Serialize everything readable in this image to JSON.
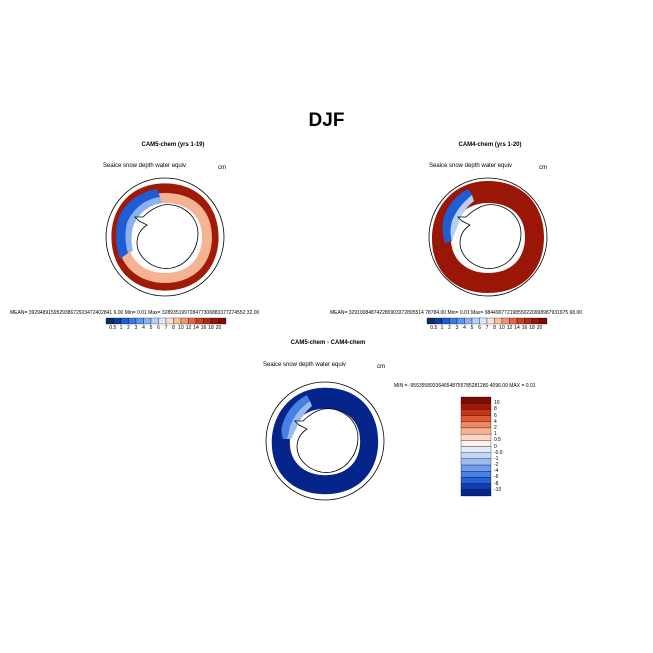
{
  "figure": {
    "title": "DJF"
  },
  "panels": [
    {
      "title": "CAM5-chem (yrs 1-19)",
      "variable": "Seaice snow depth water equiv",
      "units": "cm",
      "stats_text": "MEAN= 392948915952938672923472402841 6.00   Min=     0.01   Max=  328935199728477306883377274552 32.00"
    },
    {
      "title": "CAM4-chem (yrs 1-20)",
      "variable": "Seaice snow depth water equiv",
      "units": "cm",
      "stats_text": "MEAN= 329100848742280903372895514 78784.00   Min=     0.01   Max=  984490772198550220998987931975 68.00"
    },
    {
      "title": "CAM5-chem - CAM4-chem",
      "variable": "Seaice snow depth water equiv",
      "units": "cm",
      "stats_text": "MIN =  -9553558933646548755785281280 4096.00  MAX =     0.01"
    }
  ],
  "colorbar_top": {
    "labels": [
      "0.5",
      "1",
      "2",
      "3",
      "4",
      "5",
      "6",
      "7",
      "8",
      "10",
      "12",
      "14",
      "16",
      "18",
      "20"
    ],
    "colors": [
      "#053061",
      "#0b3f9a",
      "#1d5dd6",
      "#3a7ae8",
      "#5f96f0",
      "#8ab2f3",
      "#b6cff6",
      "#dde8fa",
      "#fbe0d0",
      "#f6bfa3",
      "#ee9472",
      "#e06a45",
      "#cc4123",
      "#b52a10",
      "#9a1606",
      "#7a0b02"
    ]
  },
  "colorbar_diff": {
    "labels": [
      "10",
      "8",
      "6",
      "4",
      "2",
      "1",
      "0.5",
      "0",
      "-0.5",
      "-1",
      "-2",
      "-4",
      "-6",
      "-8",
      "-10"
    ],
    "colors": [
      "#7a0b02",
      "#a01a08",
      "#c43418",
      "#de5a35",
      "#ee8864",
      "#f6b394",
      "#fbd6c4",
      "#fdeee6",
      "#e3ecfb",
      "#c3d6f7",
      "#99bbf2",
      "#6d9cec",
      "#4580e4",
      "#2560d6",
      "#0d3fb0",
      "#06258a"
    ]
  }
}
